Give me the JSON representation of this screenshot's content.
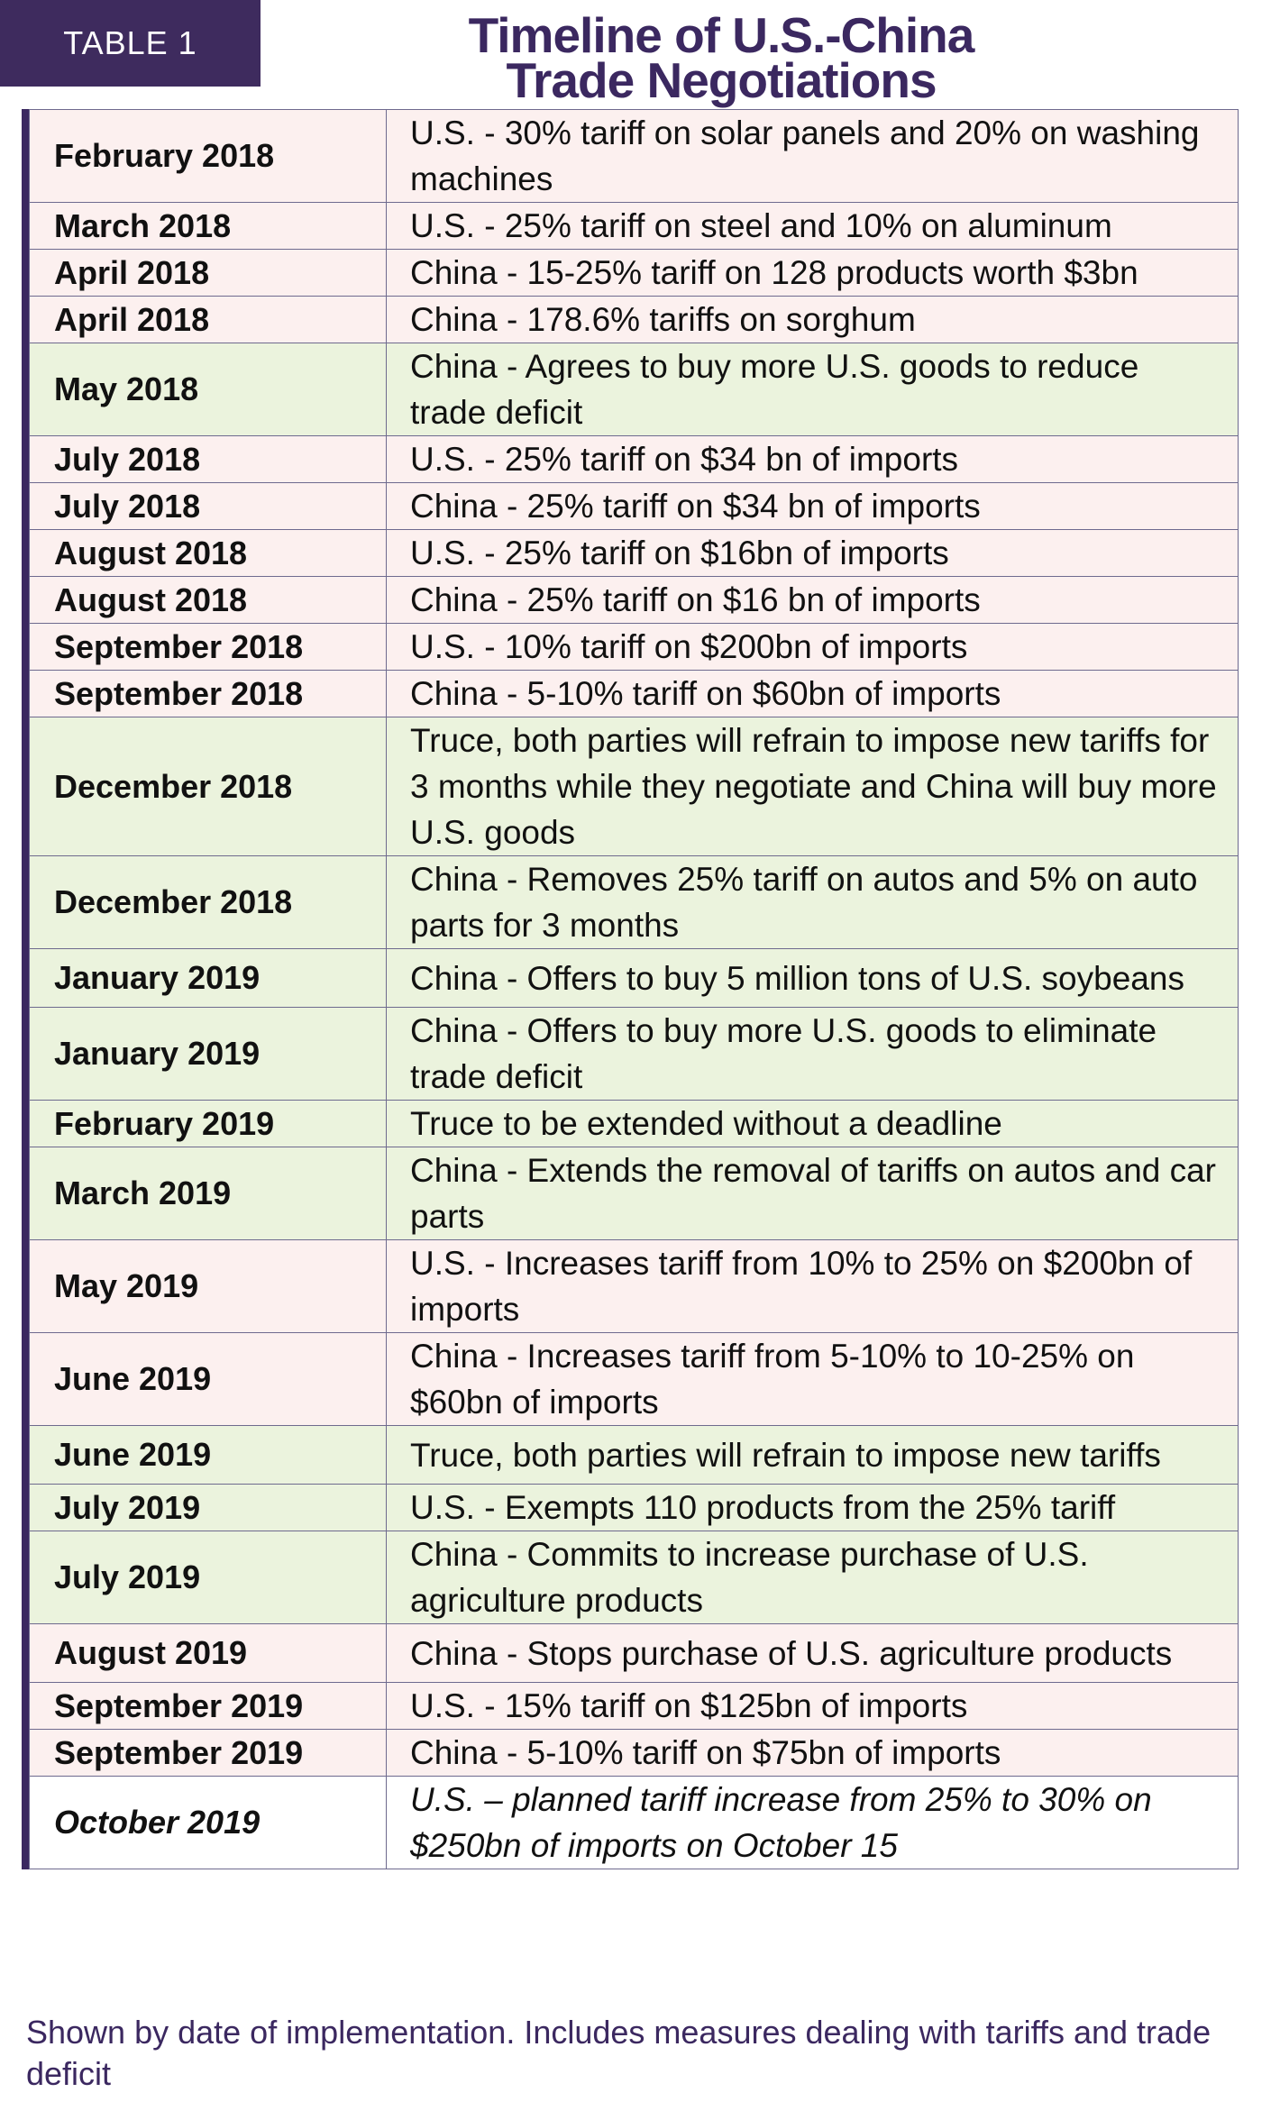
{
  "header": {
    "tag": "TABLE 1",
    "title_line1": "Timeline of U.S.-China",
    "title_line2": "Trade Negotiations"
  },
  "table": {
    "rows": [
      {
        "date": "February 2018",
        "desc": "U.S. - 30% tariff on solar panels and 20% on washing machines",
        "shade": "pink"
      },
      {
        "date": "March 2018",
        "desc": "U.S. - 25% tariff on steel and 10% on aluminum",
        "shade": "pink"
      },
      {
        "date": "April 2018",
        "desc": "China - 15-25% tariff on 128 products worth $3bn",
        "shade": "pink"
      },
      {
        "date": "April 2018",
        "desc": "China - 178.6% tariffs on sorghum",
        "shade": "pink"
      },
      {
        "date": "May 2018",
        "desc": "China - Agrees to buy more U.S. goods to reduce trade deficit",
        "shade": "green"
      },
      {
        "date": "July 2018",
        "desc": "U.S. - 25% tariff on $34 bn of imports",
        "shade": "pink"
      },
      {
        "date": "July 2018",
        "desc": "China - 25% tariff on $34 bn of imports",
        "shade": "pink"
      },
      {
        "date": "August 2018",
        "desc": "U.S. - 25% tariff on $16bn of imports",
        "shade": "pink"
      },
      {
        "date": "August 2018",
        "desc": "China - 25% tariff on $16 bn of imports",
        "shade": "pink"
      },
      {
        "date": "September 2018",
        "desc": "U.S. - 10% tariff on $200bn of imports",
        "shade": "pink"
      },
      {
        "date": "September 2018",
        "desc": "China - 5-10% tariff on $60bn of imports",
        "shade": "pink"
      },
      {
        "date": "December 2018",
        "desc": "Truce, both parties will refrain to impose new tariffs for 3 months while they negotiate and China will buy more U.S. goods",
        "shade": "green"
      },
      {
        "date": "December 2018",
        "desc": "China - Removes 25% tariff on autos and 5% on auto parts for 3 months",
        "shade": "green"
      },
      {
        "date": "January 2019",
        "desc": "China - Offers to buy 5 million tons of U.S. soybeans",
        "shade": "green"
      },
      {
        "date": "January 2019",
        "desc": "China - Offers to buy more U.S. goods to eliminate trade deficit",
        "shade": "green"
      },
      {
        "date": "February 2019",
        "desc": "Truce to be extended without a deadline",
        "shade": "green"
      },
      {
        "date": "March 2019",
        "desc": "China - Extends the removal of tariffs on autos and car parts",
        "shade": "green"
      },
      {
        "date": "May 2019",
        "desc": "U.S. - Increases tariff from 10% to 25% on $200bn of imports",
        "shade": "pink"
      },
      {
        "date": "June 2019",
        "desc": "China - Increases tariff from 5-10% to 10-25% on $60bn of imports",
        "shade": "pink"
      },
      {
        "date": "June 2019",
        "desc": "Truce, both parties will refrain to impose new tariffs",
        "shade": "green"
      },
      {
        "date": "July 2019",
        "desc": "U.S. - Exempts 110 products from the 25% tariff",
        "shade": "green"
      },
      {
        "date": "July 2019",
        "desc": "China - Commits to increase purchase of U.S. agriculture products",
        "shade": "green"
      },
      {
        "date": "August 2019",
        "desc": "China - Stops purchase of U.S. agriculture products",
        "shade": "pink"
      },
      {
        "date": "September 2019",
        "desc": "U.S. - 15% tariff on $125bn of imports",
        "shade": "pink"
      },
      {
        "date": "September 2019",
        "desc": "China - 5-10% tariff on $75bn of imports",
        "shade": "pink"
      },
      {
        "date": "October 2019",
        "desc": "U.S. – planned  tariff increase from 25% to 30% on $250bn of imports on October 15",
        "shade": "white",
        "italic": true
      }
    ]
  },
  "footer": "Shown by date of implementation. Includes measures dealing with tariffs and trade deficit",
  "colors": {
    "accent": "#3b2860",
    "pink_row": "#fcf0ef",
    "green_row": "#ebf3dd"
  }
}
